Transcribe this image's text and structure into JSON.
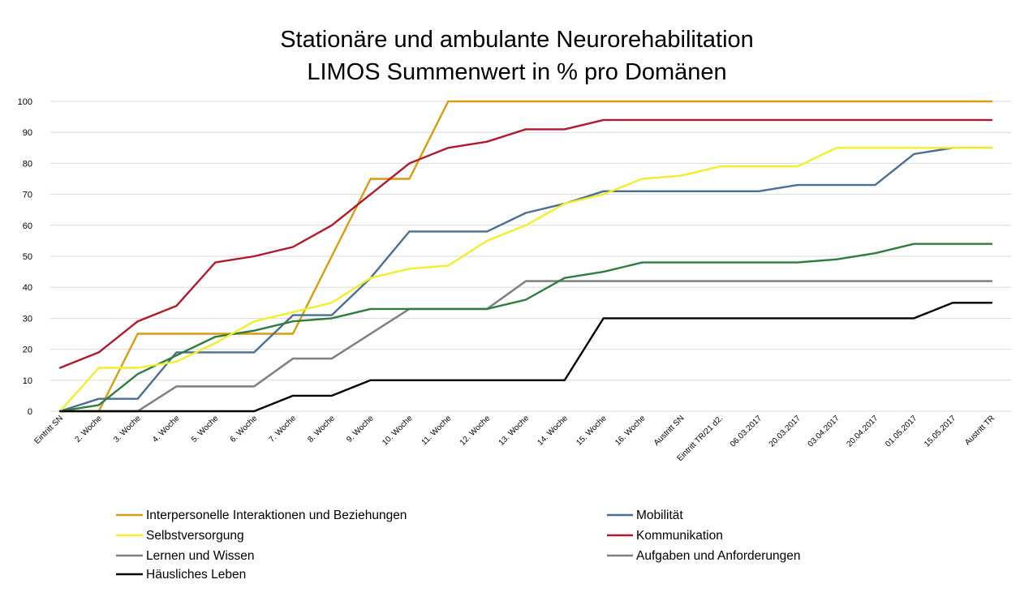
{
  "chart_data": {
    "type": "line",
    "title": [
      "Stationäre und ambulante Neurorehabilitation",
      "LIMOS Summenwert in % pro Domänen"
    ],
    "xlabel": "",
    "ylabel": "",
    "ylim": [
      0,
      100
    ],
    "yticks": [
      0,
      10,
      20,
      30,
      40,
      50,
      60,
      70,
      80,
      90,
      100
    ],
    "grid": true,
    "legend_position": "bottom",
    "categories": [
      "Eintritt SN",
      "2. Woche",
      "3. Woche",
      "4. Woche",
      "5. Woche",
      "6. Woche",
      "7. Woche",
      "8. Woche",
      "9. Woche",
      "10. Woche",
      "11. Woche",
      "12. Woche",
      "13. Woche",
      "14. Woche",
      "15. Woche",
      "16. Woche",
      "Austritt SN",
      "Eintritt TR/21 d2.",
      "06.03.2017",
      "20.03.2017",
      "03.04.2017",
      "20.04.2017",
      "01.05.2017",
      "15.05.2017",
      "Austritt TR"
    ],
    "series": [
      {
        "name": "Interpersonelle Interaktionen und Beziehungen",
        "color": "#d99b0f",
        "values": [
          0,
          0,
          25,
          25,
          25,
          25,
          25,
          50,
          75,
          75,
          100,
          100,
          100,
          100,
          100,
          100,
          100,
          100,
          100,
          100,
          100,
          100,
          100,
          100,
          100
        ]
      },
      {
        "name": "Mobilität",
        "color": "#2e7d3e",
        "values": [
          0,
          2,
          12,
          18,
          24,
          26,
          29,
          30,
          33,
          33,
          33,
          33,
          36,
          43,
          45,
          48,
          48,
          48,
          48,
          48,
          49,
          51,
          54,
          54,
          54
        ]
      },
      {
        "name": "Selbstversorgung",
        "color": "#f2ee2a",
        "values": [
          0,
          14,
          14,
          16,
          22,
          29,
          32,
          35,
          43,
          46,
          47,
          55,
          60,
          67,
          70,
          75,
          76,
          79,
          79,
          79,
          85,
          85,
          85,
          85,
          85
        ]
      },
      {
        "name": "Kommunikation",
        "color": "#b3182b",
        "values": [
          14,
          19,
          29,
          34,
          48,
          50,
          53,
          60,
          70,
          80,
          85,
          87,
          91,
          91,
          94,
          94,
          94,
          94,
          94,
          94,
          94,
          94,
          94,
          94,
          94
        ]
      },
      {
        "name": "Lernen und Wissen",
        "color": "#808080",
        "values": [
          0,
          0,
          0,
          8,
          8,
          8,
          17,
          17,
          25,
          33,
          33,
          33,
          42,
          42,
          42,
          42,
          42,
          42,
          42,
          42,
          42,
          42,
          42,
          42,
          42
        ]
      },
      {
        "name": "Aufgaben und Anforderungen",
        "color": "#9a8ea6",
        "values": [
          0,
          0,
          0,
          8,
          8,
          8,
          17,
          17,
          25,
          33,
          33,
          33,
          42,
          42,
          42,
          42,
          42,
          42,
          42,
          42,
          42,
          42,
          42,
          42,
          42
        ]
      },
      {
        "name": "Häusliches Leben",
        "color": "#000000",
        "values": [
          0,
          0,
          0,
          0,
          0,
          0,
          5,
          5,
          10,
          10,
          10,
          10,
          10,
          10,
          30,
          30,
          30,
          30,
          30,
          30,
          30,
          30,
          30,
          35,
          35
        ]
      },
      {
        "name": "",
        "color": "#4a6f94",
        "in_legend": false,
        "values": [
          0,
          4,
          4,
          19,
          19,
          19,
          31,
          31,
          43,
          58,
          58,
          58,
          64,
          67,
          71,
          71,
          71,
          71,
          71,
          73,
          73,
          73,
          83,
          85,
          85
        ]
      }
    ],
    "legend": {
      "left": [
        "Interpersonelle Interaktionen und Beziehungen",
        "Selbstversorgung",
        "Lernen und Wissen",
        "Häusliches Leben"
      ],
      "right": [
        "Mobilität",
        "Kommunikation",
        "Aufgaben und Anforderungen"
      ],
      "right_colors": [
        "#4a6f94",
        "#b3182b",
        "#808080"
      ]
    }
  }
}
